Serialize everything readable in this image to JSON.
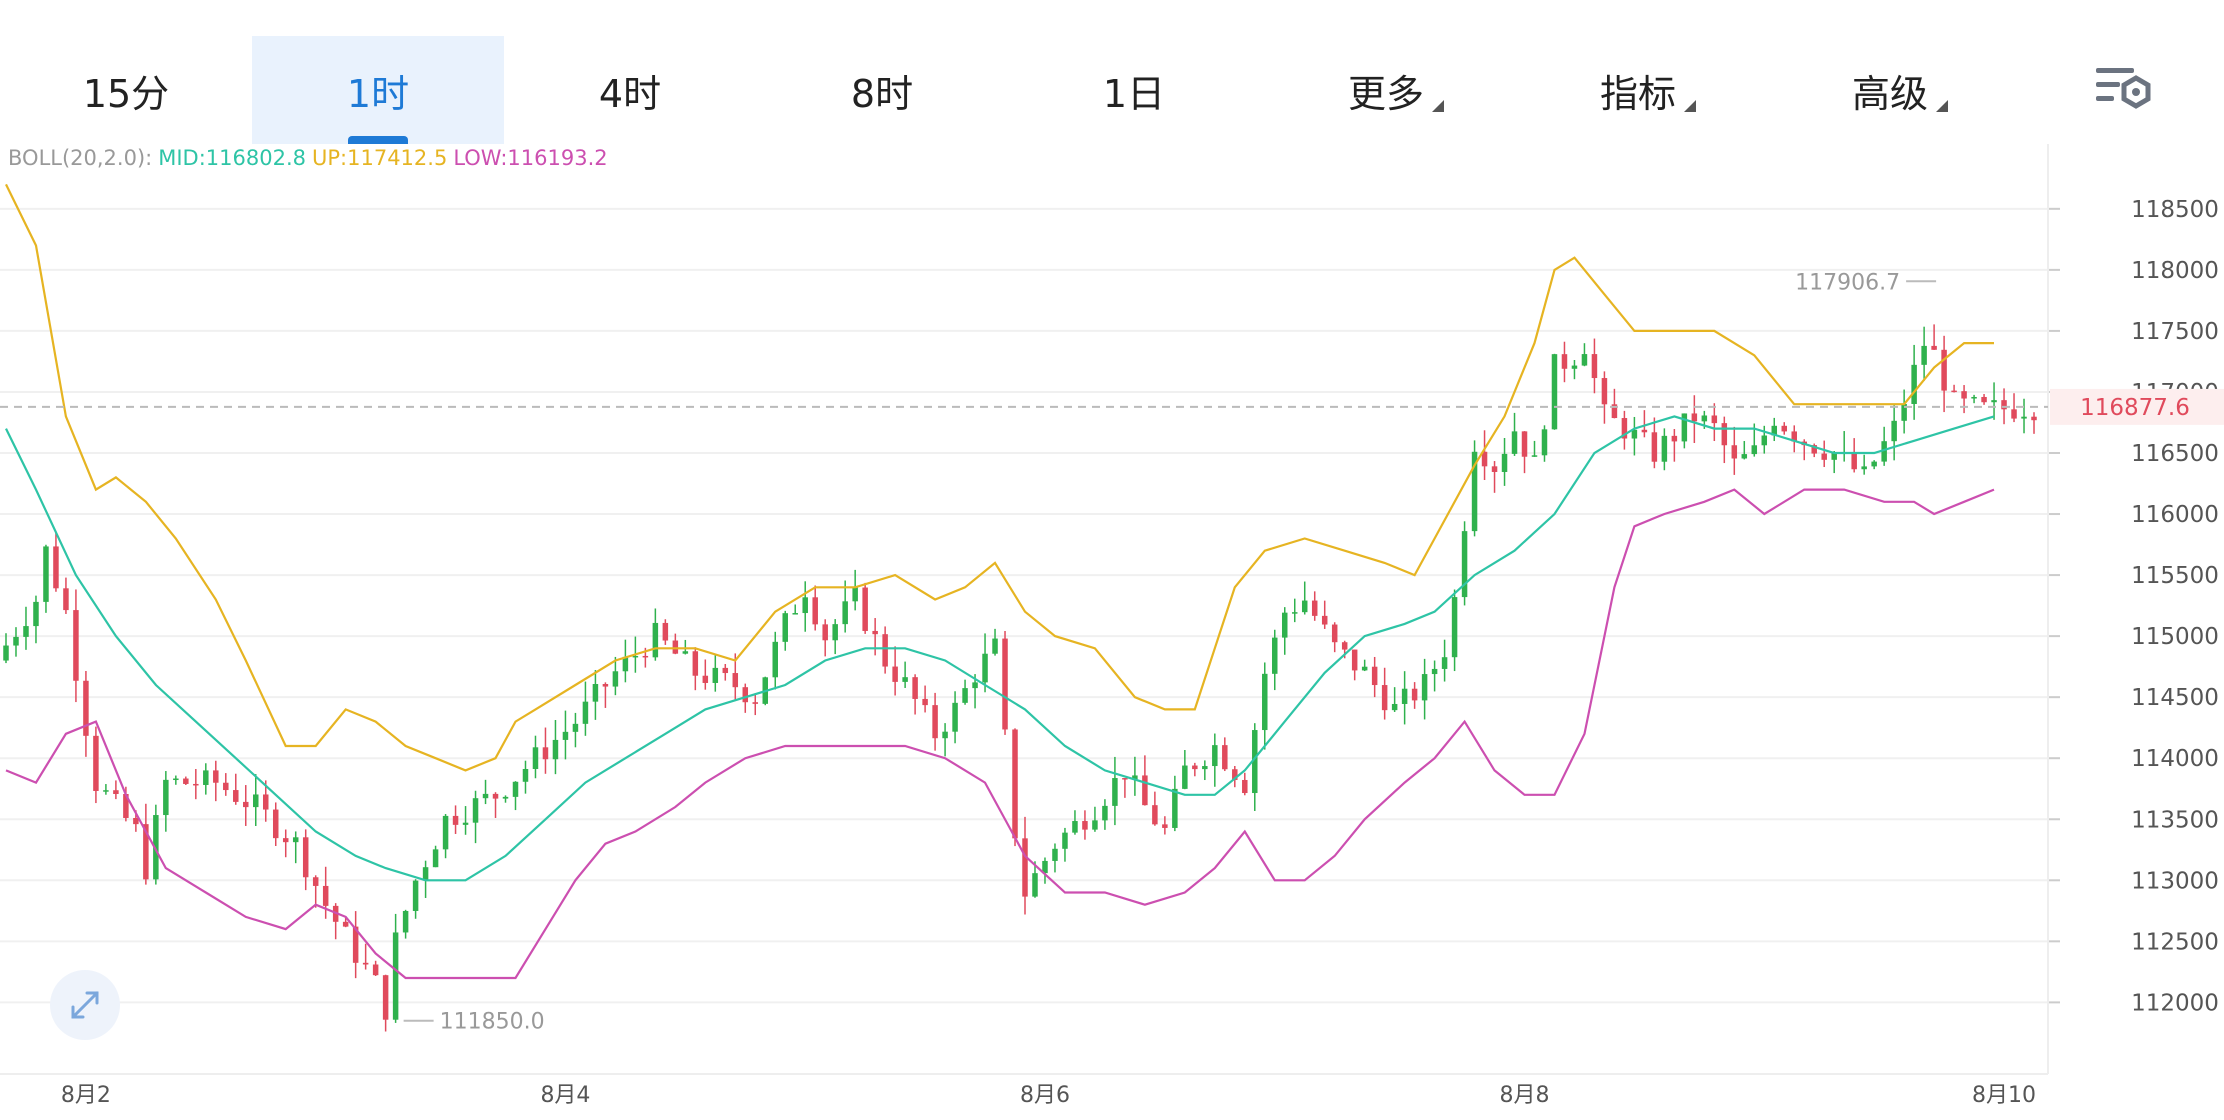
{
  "tabs": [
    {
      "label": "15分",
      "active": false,
      "dropdown": false
    },
    {
      "label": "1时",
      "active": true,
      "dropdown": false
    },
    {
      "label": "4时",
      "active": false,
      "dropdown": false
    },
    {
      "label": "8时",
      "active": false,
      "dropdown": false
    },
    {
      "label": "1日",
      "active": false,
      "dropdown": false
    },
    {
      "label": "更多",
      "active": false,
      "dropdown": true
    },
    {
      "label": "指标",
      "active": false,
      "dropdown": true
    },
    {
      "label": "高级",
      "active": false,
      "dropdown": true
    }
  ],
  "settings_icon": "chart-settings-icon",
  "expand_icon": "expand-icon",
  "legend": {
    "prefix": "BOLL(20,2.0):",
    "mid": "MID:116802.8",
    "up": "UP:117412.5",
    "low": "LOW:116193.2"
  },
  "colors": {
    "accent": "#1e7ad6",
    "up_candle": "#2fb14d",
    "down_candle": "#e04a5c",
    "mid": "#2ec4a6",
    "upper": "#e6b422",
    "lower": "#cc4fb0",
    "grid": "#f0f0f0",
    "axis_text": "#555555",
    "price_line": "#bbbbbb",
    "price_tag_text": "#e04a5c",
    "price_tag_bg": "#fdeeee"
  },
  "chart_data": {
    "type": "candlestick",
    "y_ticks": [
      118500,
      118000,
      117500,
      117000,
      116500,
      116000,
      115500,
      115000,
      114500,
      114000,
      113500,
      113000,
      112500,
      112000
    ],
    "ylim": [
      111700,
      118900
    ],
    "x_labels": [
      {
        "label": "8月2",
        "index": 8
      },
      {
        "label": "8月4",
        "index": 56
      },
      {
        "label": "8月6",
        "index": 104
      },
      {
        "label": "8月8",
        "index": 152
      },
      {
        "label": "8月10",
        "index": 200
      }
    ],
    "candle_count": 204,
    "current_price": "116877.6",
    "high_marker": {
      "label": "117906.7",
      "value": 117906.7,
      "index": 194
    },
    "low_marker": {
      "label": "111850.0",
      "value": 111850.0,
      "index": 39
    },
    "price_path": [
      [
        0,
        114800
      ],
      [
        4,
        115300
      ],
      [
        5,
        115700
      ],
      [
        7,
        115200
      ],
      [
        10,
        113800
      ],
      [
        14,
        113400
      ],
      [
        15,
        113100
      ],
      [
        17,
        113800
      ],
      [
        22,
        113800
      ],
      [
        26,
        113600
      ],
      [
        30,
        113300
      ],
      [
        33,
        112800
      ],
      [
        36,
        112400
      ],
      [
        38,
        112150
      ],
      [
        39,
        111950
      ],
      [
        40,
        112500
      ],
      [
        42,
        113000
      ],
      [
        45,
        113500
      ],
      [
        50,
        113700
      ],
      [
        54,
        114000
      ],
      [
        58,
        114300
      ],
      [
        62,
        114700
      ],
      [
        66,
        115000
      ],
      [
        70,
        114700
      ],
      [
        74,
        114600
      ],
      [
        76,
        114500
      ],
      [
        79,
        115100
      ],
      [
        81,
        115400
      ],
      [
        83,
        115000
      ],
      [
        86,
        115300
      ],
      [
        89,
        114800
      ],
      [
        91,
        114600
      ],
      [
        94,
        114200
      ],
      [
        96,
        114400
      ],
      [
        98,
        114700
      ],
      [
        100,
        114900
      ],
      [
        102,
        113400
      ],
      [
        103,
        112900
      ],
      [
        106,
        113300
      ],
      [
        110,
        113600
      ],
      [
        113,
        113900
      ],
      [
        115,
        113600
      ],
      [
        117,
        113400
      ],
      [
        119,
        113900
      ],
      [
        122,
        114100
      ],
      [
        125,
        113800
      ],
      [
        127,
        114700
      ],
      [
        129,
        115200
      ],
      [
        131,
        115300
      ],
      [
        134,
        114900
      ],
      [
        137,
        114700
      ],
      [
        140,
        114400
      ],
      [
        143,
        114600
      ],
      [
        145,
        114900
      ],
      [
        146,
        115300
      ],
      [
        148,
        116600
      ],
      [
        150,
        116400
      ],
      [
        152,
        116700
      ],
      [
        154,
        116400
      ],
      [
        156,
        117200
      ],
      [
        158,
        117300
      ],
      [
        159,
        117400
      ],
      [
        161,
        116800
      ],
      [
        163,
        116700
      ],
      [
        166,
        116500
      ],
      [
        170,
        116800
      ],
      [
        172,
        116700
      ],
      [
        174,
        116400
      ],
      [
        176,
        116500
      ],
      [
        178,
        116800
      ],
      [
        181,
        116600
      ],
      [
        184,
        116500
      ],
      [
        187,
        116300
      ],
      [
        190,
        116700
      ],
      [
        193,
        117400
      ],
      [
        194,
        117300
      ],
      [
        196,
        116900
      ],
      [
        199,
        116850
      ],
      [
        203,
        116878
      ]
    ],
    "bands": {
      "upper": [
        [
          0,
          118700
        ],
        [
          3,
          118200
        ],
        [
          6,
          116800
        ],
        [
          9,
          116200
        ],
        [
          11,
          116300
        ],
        [
          14,
          116100
        ],
        [
          17,
          115800
        ],
        [
          21,
          115300
        ],
        [
          24,
          114800
        ],
        [
          28,
          114100
        ],
        [
          31,
          114100
        ],
        [
          34,
          114400
        ],
        [
          37,
          114300
        ],
        [
          40,
          114100
        ],
        [
          43,
          114000
        ],
        [
          46,
          113900
        ],
        [
          49,
          114000
        ],
        [
          51,
          114300
        ],
        [
          53,
          114400
        ],
        [
          57,
          114600
        ],
        [
          61,
          114800
        ],
        [
          65,
          114900
        ],
        [
          69,
          114900
        ],
        [
          73,
          114800
        ],
        [
          77,
          115200
        ],
        [
          81,
          115400
        ],
        [
          85,
          115400
        ],
        [
          89,
          115500
        ],
        [
          93,
          115300
        ],
        [
          96,
          115400
        ],
        [
          99,
          115600
        ],
        [
          102,
          115200
        ],
        [
          105,
          115000
        ],
        [
          109,
          114900
        ],
        [
          113,
          114500
        ],
        [
          116,
          114400
        ],
        [
          119,
          114400
        ],
        [
          121,
          114900
        ],
        [
          123,
          115400
        ],
        [
          126,
          115700
        ],
        [
          130,
          115800
        ],
        [
          134,
          115700
        ],
        [
          138,
          115600
        ],
        [
          141,
          115500
        ],
        [
          143,
          115800
        ],
        [
          147,
          116400
        ],
        [
          150,
          116800
        ],
        [
          153,
          117400
        ],
        [
          155,
          118000
        ],
        [
          157,
          118100
        ],
        [
          160,
          117800
        ],
        [
          163,
          117500
        ],
        [
          167,
          117500
        ],
        [
          171,
          117500
        ],
        [
          175,
          117300
        ],
        [
          179,
          116900
        ],
        [
          183,
          116900
        ],
        [
          187,
          116900
        ],
        [
          190,
          116900
        ],
        [
          193,
          117200
        ],
        [
          196,
          117400
        ],
        [
          199,
          117400
        ]
      ],
      "mid": [
        [
          0,
          116700
        ],
        [
          3,
          116200
        ],
        [
          7,
          115500
        ],
        [
          11,
          115000
        ],
        [
          15,
          114600
        ],
        [
          19,
          114300
        ],
        [
          23,
          114000
        ],
        [
          27,
          113700
        ],
        [
          31,
          113400
        ],
        [
          35,
          113200
        ],
        [
          38,
          113100
        ],
        [
          42,
          113000
        ],
        [
          46,
          113000
        ],
        [
          50,
          113200
        ],
        [
          54,
          113500
        ],
        [
          58,
          113800
        ],
        [
          62,
          114000
        ],
        [
          66,
          114200
        ],
        [
          70,
          114400
        ],
        [
          74,
          114500
        ],
        [
          78,
          114600
        ],
        [
          82,
          114800
        ],
        [
          86,
          114900
        ],
        [
          90,
          114900
        ],
        [
          94,
          114800
        ],
        [
          98,
          114600
        ],
        [
          102,
          114400
        ],
        [
          106,
          114100
        ],
        [
          110,
          113900
        ],
        [
          114,
          113800
        ],
        [
          118,
          113700
        ],
        [
          121,
          113700
        ],
        [
          124,
          113900
        ],
        [
          128,
          114300
        ],
        [
          132,
          114700
        ],
        [
          136,
          115000
        ],
        [
          140,
          115100
        ],
        [
          143,
          115200
        ],
        [
          147,
          115500
        ],
        [
          151,
          115700
        ],
        [
          155,
          116000
        ],
        [
          159,
          116500
        ],
        [
          163,
          116700
        ],
        [
          167,
          116800
        ],
        [
          171,
          116700
        ],
        [
          175,
          116700
        ],
        [
          179,
          116600
        ],
        [
          183,
          116500
        ],
        [
          187,
          116500
        ],
        [
          191,
          116600
        ],
        [
          195,
          116700
        ],
        [
          199,
          116800
        ]
      ],
      "lower": [
        [
          0,
          113900
        ],
        [
          3,
          113800
        ],
        [
          6,
          114200
        ],
        [
          9,
          114300
        ],
        [
          12,
          113700
        ],
        [
          16,
          113100
        ],
        [
          20,
          112900
        ],
        [
          24,
          112700
        ],
        [
          28,
          112600
        ],
        [
          31,
          112800
        ],
        [
          34,
          112700
        ],
        [
          37,
          112400
        ],
        [
          40,
          112200
        ],
        [
          43,
          112200
        ],
        [
          47,
          112200
        ],
        [
          51,
          112200
        ],
        [
          54,
          112600
        ],
        [
          57,
          113000
        ],
        [
          60,
          113300
        ],
        [
          63,
          113400
        ],
        [
          67,
          113600
        ],
        [
          70,
          113800
        ],
        [
          74,
          114000
        ],
        [
          78,
          114100
        ],
        [
          82,
          114100
        ],
        [
          86,
          114100
        ],
        [
          90,
          114100
        ],
        [
          94,
          114000
        ],
        [
          98,
          113800
        ],
        [
          102,
          113200
        ],
        [
          106,
          112900
        ],
        [
          110,
          112900
        ],
        [
          114,
          112800
        ],
        [
          118,
          112900
        ],
        [
          121,
          113100
        ],
        [
          124,
          113400
        ],
        [
          127,
          113000
        ],
        [
          130,
          113000
        ],
        [
          133,
          113200
        ],
        [
          136,
          113500
        ],
        [
          140,
          113800
        ],
        [
          143,
          114000
        ],
        [
          146,
          114300
        ],
        [
          149,
          113900
        ],
        [
          152,
          113700
        ],
        [
          155,
          113700
        ],
        [
          158,
          114200
        ],
        [
          161,
          115400
        ],
        [
          163,
          115900
        ],
        [
          166,
          116000
        ],
        [
          170,
          116100
        ],
        [
          173,
          116200
        ],
        [
          176,
          116000
        ],
        [
          180,
          116200
        ],
        [
          184,
          116200
        ],
        [
          188,
          116100
        ],
        [
          191,
          116100
        ],
        [
          193,
          116000
        ],
        [
          196,
          116100
        ],
        [
          199,
          116200
        ]
      ]
    }
  }
}
